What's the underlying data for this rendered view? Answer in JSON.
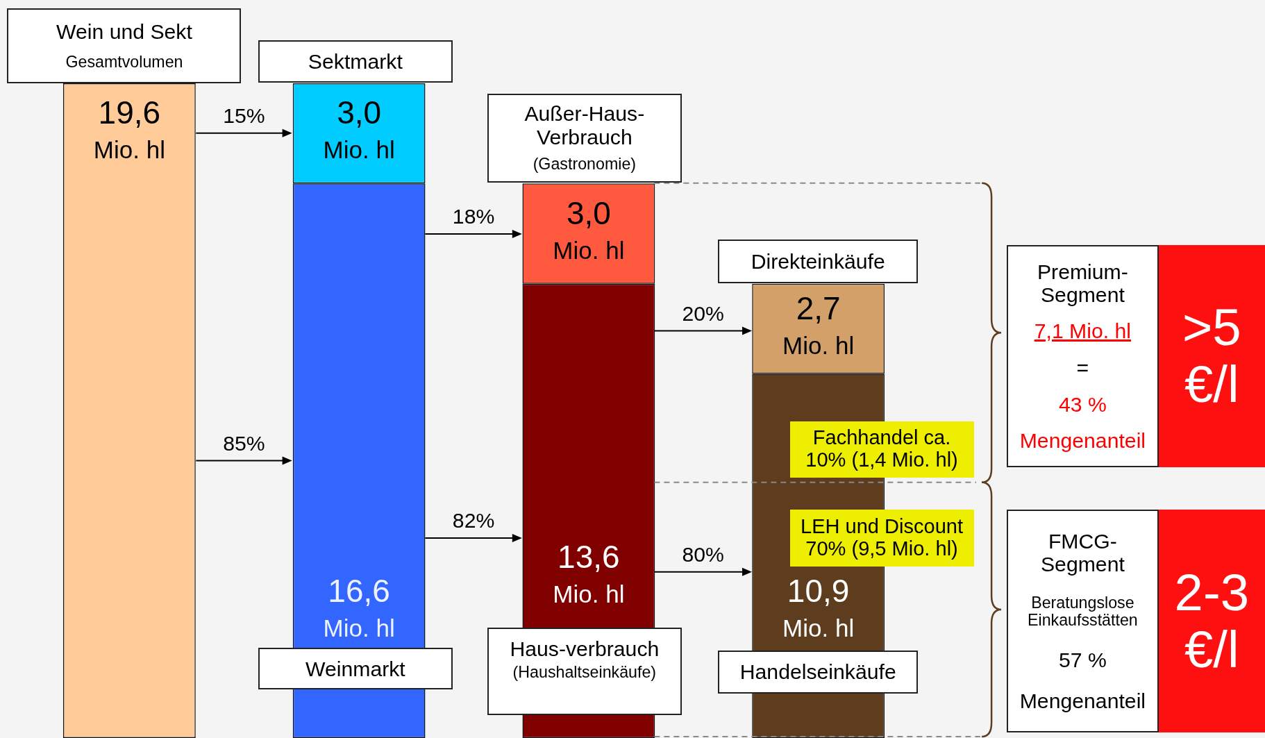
{
  "chart_data": {
    "type": "bar",
    "stacked": true,
    "categories": [
      null,
      null,
      null,
      null
    ],
    "legend": false,
    "grid": false,
    "tick_labels": false,
    "series": [
      {
        "values": [
          19.6,
          16.6,
          13.6,
          10.9
        ],
        "colors": [
          "#ffcc99",
          "#3366ff",
          "#800000",
          "#5e3c1e"
        ],
        "value_labels": [
          "19,6 Mio. hl",
          "16,6 Mio. hl",
          "13,6 Mio. hl",
          "10,9 Mio. hl"
        ]
      },
      {
        "values": [
          null,
          3.0,
          3.0,
          2.7
        ],
        "colors": [
          null,
          "#00ccff",
          "#ff5a40",
          "#d4a06a"
        ],
        "value_labels": [
          null,
          "3,0 Mio. hl",
          "3,0 Mio. hl",
          "2,7 Mio. hl"
        ]
      }
    ],
    "annotations": [
      "Wein und Sekt",
      "Gesamtvolumen",
      "Sektmarkt",
      "Außer-Haus-Verbrauch",
      "(Gastronomie)",
      "Direkteinkäufe",
      "Weinmarkt",
      "Haus-verbrauch",
      "(Haushaltseinkäufe)",
      "Handelseinkäufe",
      "Fachhandel ca. 10% (1,4 Mio. hl)",
      "LEH und Discount 70% (9,5 Mio. hl)",
      "15%",
      "85%",
      "18%",
      "82%",
      "20%",
      "80%",
      "Premium-Segment",
      "7,1 Mio. hl",
      "=",
      "43 %",
      "Mengenanteil",
      ">5 €/l",
      "FMCG-Segment",
      "Beratungslose Einkaufsstätten",
      "57 %",
      "Mengenanteil",
      "2-3 €/l"
    ]
  }
}
